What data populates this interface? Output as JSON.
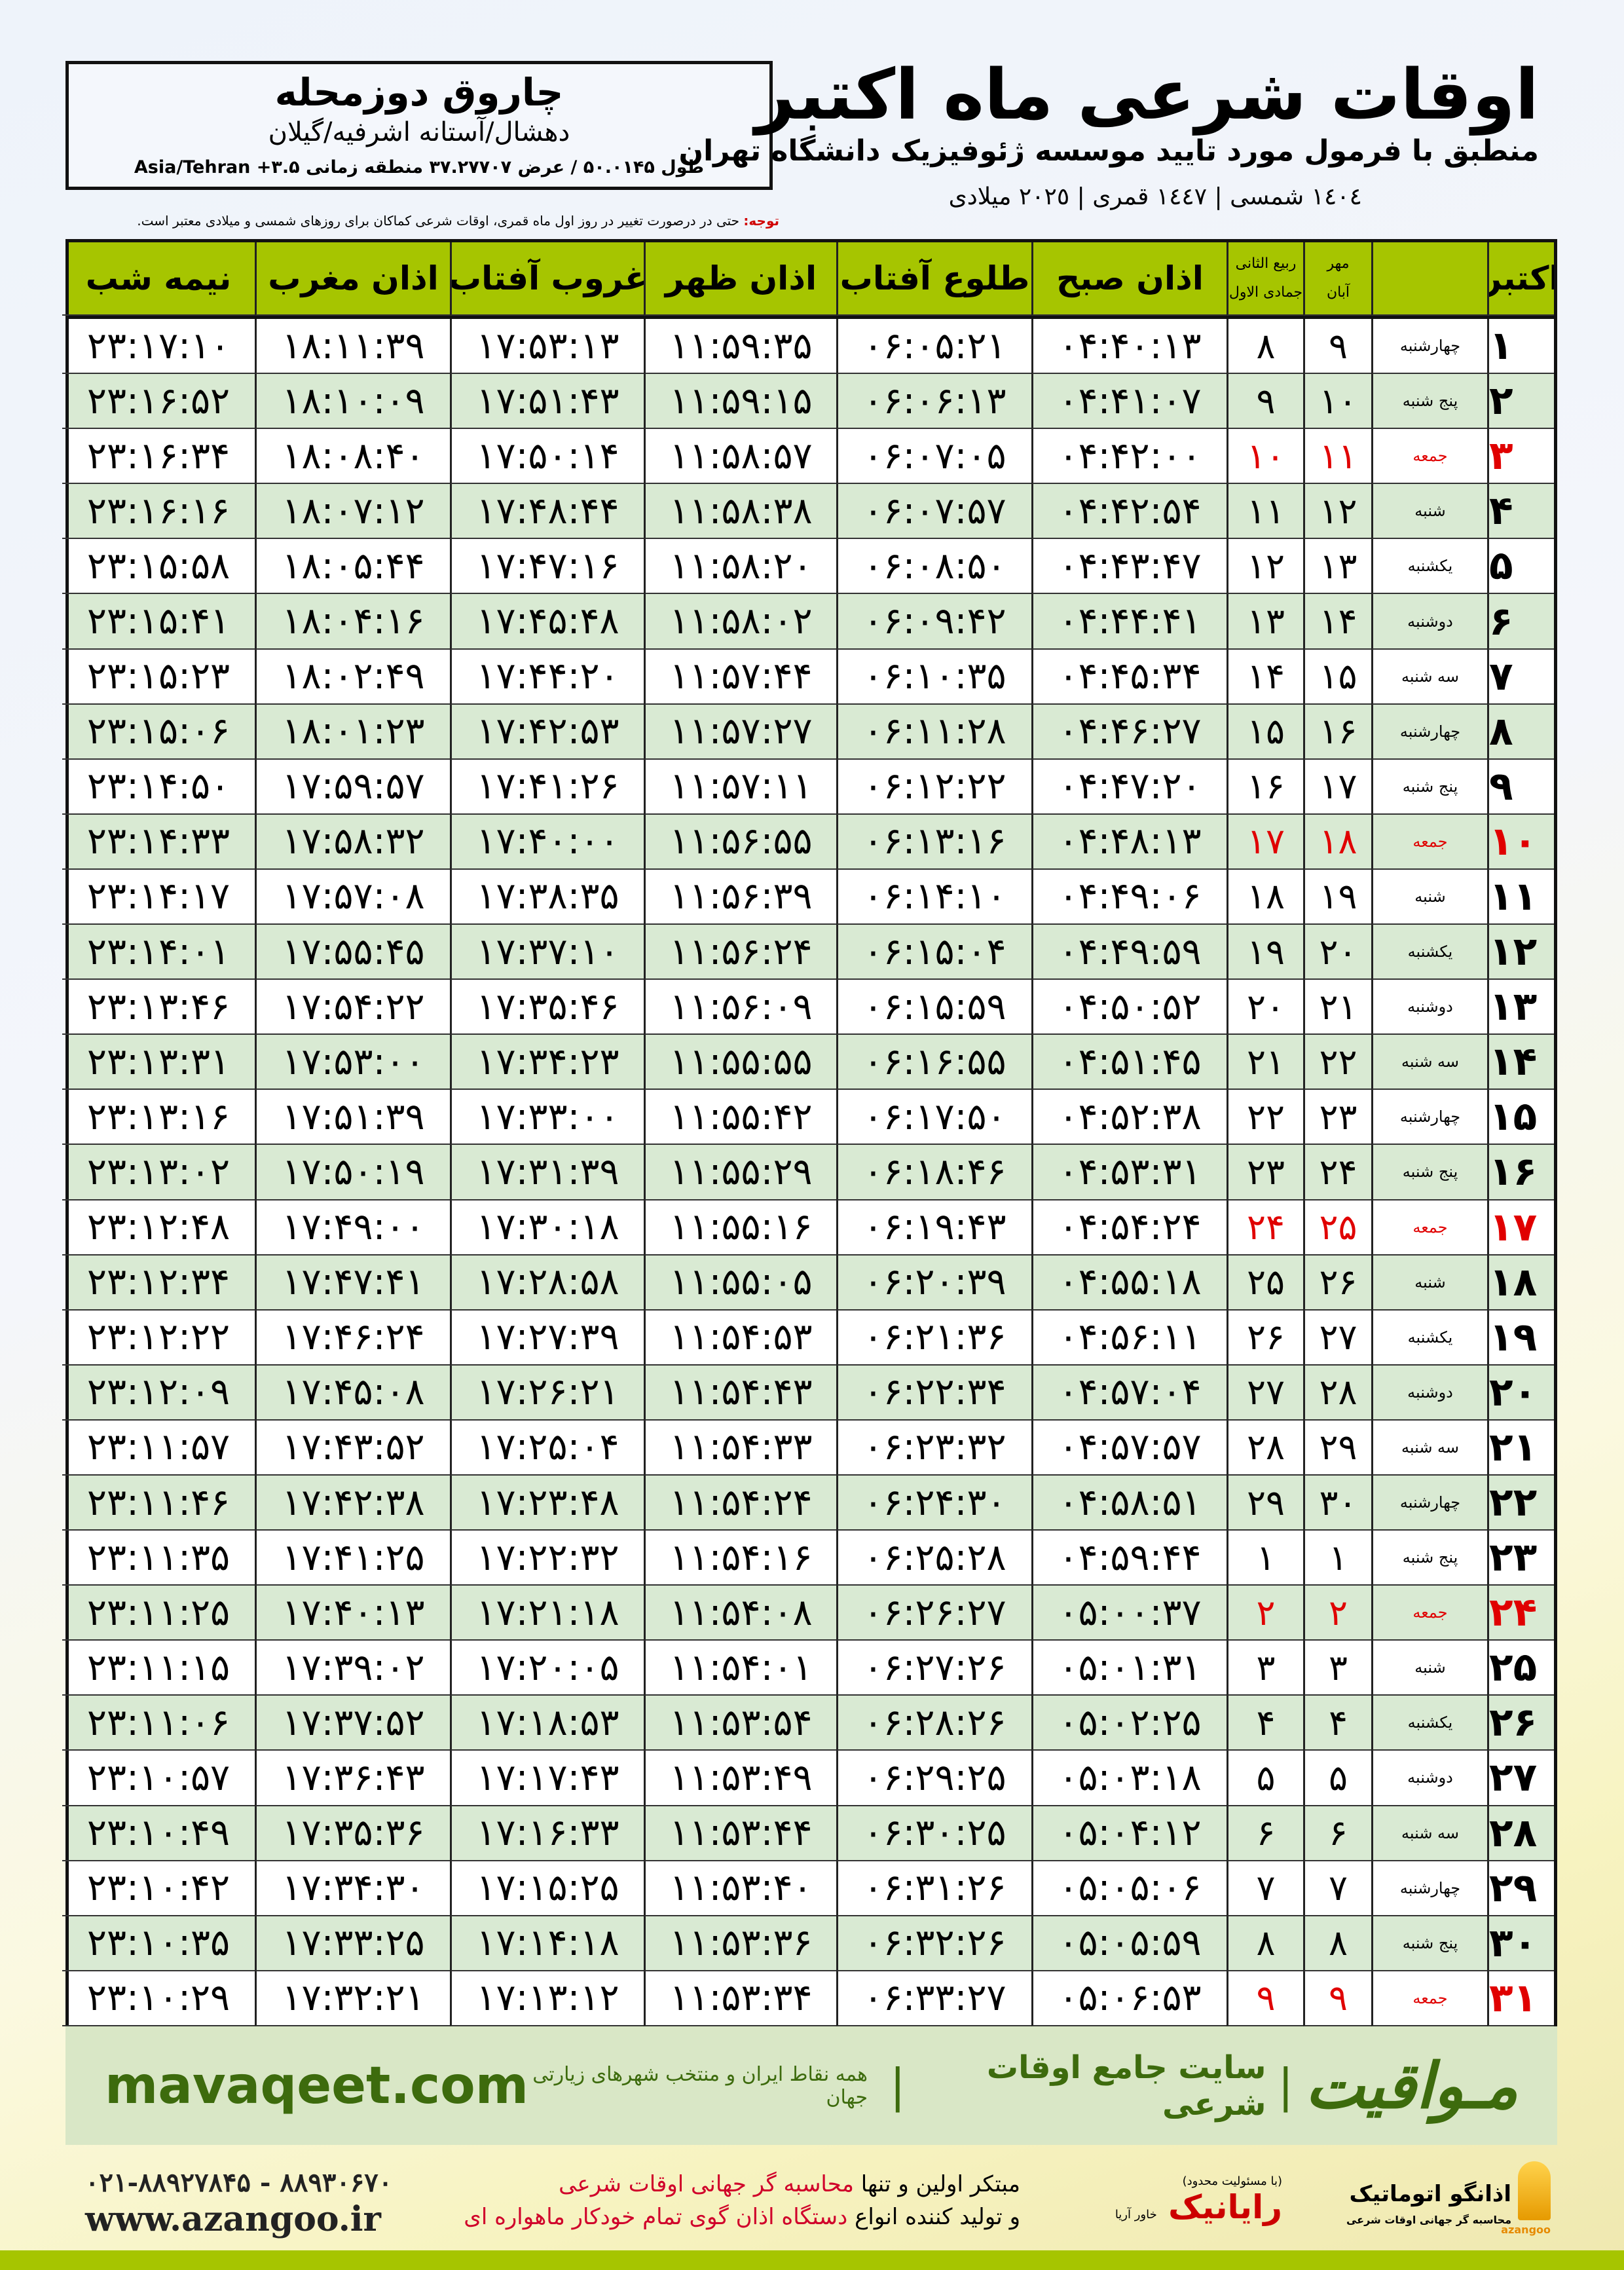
{
  "header": {
    "title": "اوقات شرعی ماه اکتبر",
    "subtitle": "منطبق با فرمول مورد تایید موسسه ژئوفیزیک دانشگاه تهران",
    "dates": "١٤٠٤ شمسی | ١٤٤٧ قمری | ٢٠٢٥ میلادی"
  },
  "location": {
    "city": "چاروق دوزمحله",
    "region": "دهشال/آستانه اشرفیه/گیلان",
    "coords": "طول ۵۰.۰۱۴۵ / عرض ۳۷.۲۷۷۰۷ منطقه زمانی ۳.۵+ Asia/Tehran"
  },
  "note": {
    "label": "توجه:",
    "text": "حتی در درصورت تغییر در روز اول ماه قمری، اوقات شرعی کماکان برای روزهای شمسی و میلادی معتبر است."
  },
  "colors": {
    "header_bg": "#a6c500",
    "alt_row": "#d9ead3",
    "holiday": "#e00000",
    "brand": "#3d6b0d"
  },
  "columns": {
    "month": "اکتبر",
    "shamsi_top": "مهر",
    "shamsi_bottom": "آبان",
    "qamari_top": "ربیع الثانی",
    "qamari_bottom": "جمادی الاول",
    "fajr": "اذان صبح",
    "sunrise": "طلوع آفتاب",
    "dhuhr": "اذان ظهر",
    "sunset": "غروب آفتاب",
    "maghrib": "اذان مغرب",
    "midnight": "نیمه شب"
  },
  "holiday_weekday": "جمعه",
  "rows": [
    [
      "۱",
      "چهارشنبه",
      "۹",
      "۸",
      "۰۴:۴۰:۱۳",
      "۰۶:۰۵:۲۱",
      "۱۱:۵۹:۳۵",
      "۱۷:۵۳:۱۳",
      "۱۸:۱۱:۳۹",
      "۲۳:۱۷:۱۰"
    ],
    [
      "۲",
      "پنج شنبه",
      "۱۰",
      "۹",
      "۰۴:۴۱:۰۷",
      "۰۶:۰۶:۱۳",
      "۱۱:۵۹:۱۵",
      "۱۷:۵۱:۴۳",
      "۱۸:۱۰:۰۹",
      "۲۳:۱۶:۵۲"
    ],
    [
      "۳",
      "جمعه",
      "۱۱",
      "۱۰",
      "۰۴:۴۲:۰۰",
      "۰۶:۰۷:۰۵",
      "۱۱:۵۸:۵۷",
      "۱۷:۵۰:۱۴",
      "۱۸:۰۸:۴۰",
      "۲۳:۱۶:۳۴"
    ],
    [
      "۴",
      "شنبه",
      "۱۲",
      "۱۱",
      "۰۴:۴۲:۵۴",
      "۰۶:۰۷:۵۷",
      "۱۱:۵۸:۳۸",
      "۱۷:۴۸:۴۴",
      "۱۸:۰۷:۱۲",
      "۲۳:۱۶:۱۶"
    ],
    [
      "۵",
      "یکشنبه",
      "۱۳",
      "۱۲",
      "۰۴:۴۳:۴۷",
      "۰۶:۰۸:۵۰",
      "۱۱:۵۸:۲۰",
      "۱۷:۴۷:۱۶",
      "۱۸:۰۵:۴۴",
      "۲۳:۱۵:۵۸"
    ],
    [
      "۶",
      "دوشنبه",
      "۱۴",
      "۱۳",
      "۰۴:۴۴:۴۱",
      "۰۶:۰۹:۴۲",
      "۱۱:۵۸:۰۲",
      "۱۷:۴۵:۴۸",
      "۱۸:۰۴:۱۶",
      "۲۳:۱۵:۴۱"
    ],
    [
      "۷",
      "سه شنبه",
      "۱۵",
      "۱۴",
      "۰۴:۴۵:۳۴",
      "۰۶:۱۰:۳۵",
      "۱۱:۵۷:۴۴",
      "۱۷:۴۴:۲۰",
      "۱۸:۰۲:۴۹",
      "۲۳:۱۵:۲۳"
    ],
    [
      "۸",
      "چهارشنبه",
      "۱۶",
      "۱۵",
      "۰۴:۴۶:۲۷",
      "۰۶:۱۱:۲۸",
      "۱۱:۵۷:۲۷",
      "۱۷:۴۲:۵۳",
      "۱۸:۰۱:۲۳",
      "۲۳:۱۵:۰۶"
    ],
    [
      "۹",
      "پنج شنبه",
      "۱۷",
      "۱۶",
      "۰۴:۴۷:۲۰",
      "۰۶:۱۲:۲۲",
      "۱۱:۵۷:۱۱",
      "۱۷:۴۱:۲۶",
      "۱۷:۵۹:۵۷",
      "۲۳:۱۴:۵۰"
    ],
    [
      "۱۰",
      "جمعه",
      "۱۸",
      "۱۷",
      "۰۴:۴۸:۱۳",
      "۰۶:۱۳:۱۶",
      "۱۱:۵۶:۵۵",
      "۱۷:۴۰:۰۰",
      "۱۷:۵۸:۳۲",
      "۲۳:۱۴:۳۳"
    ],
    [
      "۱۱",
      "شنبه",
      "۱۹",
      "۱۸",
      "۰۴:۴۹:۰۶",
      "۰۶:۱۴:۱۰",
      "۱۱:۵۶:۳۹",
      "۱۷:۳۸:۳۵",
      "۱۷:۵۷:۰۸",
      "۲۳:۱۴:۱۷"
    ],
    [
      "۱۲",
      "یکشنبه",
      "۲۰",
      "۱۹",
      "۰۴:۴۹:۵۹",
      "۰۶:۱۵:۰۴",
      "۱۱:۵۶:۲۴",
      "۱۷:۳۷:۱۰",
      "۱۷:۵۵:۴۵",
      "۲۳:۱۴:۰۱"
    ],
    [
      "۱۳",
      "دوشنبه",
      "۲۱",
      "۲۰",
      "۰۴:۵۰:۵۲",
      "۰۶:۱۵:۵۹",
      "۱۱:۵۶:۰۹",
      "۱۷:۳۵:۴۶",
      "۱۷:۵۴:۲۲",
      "۲۳:۱۳:۴۶"
    ],
    [
      "۱۴",
      "سه شنبه",
      "۲۲",
      "۲۱",
      "۰۴:۵۱:۴۵",
      "۰۶:۱۶:۵۵",
      "۱۱:۵۵:۵۵",
      "۱۷:۳۴:۲۳",
      "۱۷:۵۳:۰۰",
      "۲۳:۱۳:۳۱"
    ],
    [
      "۱۵",
      "چهارشنبه",
      "۲۳",
      "۲۲",
      "۰۴:۵۲:۳۸",
      "۰۶:۱۷:۵۰",
      "۱۱:۵۵:۴۲",
      "۱۷:۳۳:۰۰",
      "۱۷:۵۱:۳۹",
      "۲۳:۱۳:۱۶"
    ],
    [
      "۱۶",
      "پنج شنبه",
      "۲۴",
      "۲۳",
      "۰۴:۵۳:۳۱",
      "۰۶:۱۸:۴۶",
      "۱۱:۵۵:۲۹",
      "۱۷:۳۱:۳۹",
      "۱۷:۵۰:۱۹",
      "۲۳:۱۳:۰۲"
    ],
    [
      "۱۷",
      "جمعه",
      "۲۵",
      "۲۴",
      "۰۴:۵۴:۲۴",
      "۰۶:۱۹:۴۳",
      "۱۱:۵۵:۱۶",
      "۱۷:۳۰:۱۸",
      "۱۷:۴۹:۰۰",
      "۲۳:۱۲:۴۸"
    ],
    [
      "۱۸",
      "شنبه",
      "۲۶",
      "۲۵",
      "۰۴:۵۵:۱۸",
      "۰۶:۲۰:۳۹",
      "۱۱:۵۵:۰۵",
      "۱۷:۲۸:۵۸",
      "۱۷:۴۷:۴۱",
      "۲۳:۱۲:۳۴"
    ],
    [
      "۱۹",
      "یکشنبه",
      "۲۷",
      "۲۶",
      "۰۴:۵۶:۱۱",
      "۰۶:۲۱:۳۶",
      "۱۱:۵۴:۵۳",
      "۱۷:۲۷:۳۹",
      "۱۷:۴۶:۲۴",
      "۲۳:۱۲:۲۲"
    ],
    [
      "۲۰",
      "دوشنبه",
      "۲۸",
      "۲۷",
      "۰۴:۵۷:۰۴",
      "۰۶:۲۲:۳۴",
      "۱۱:۵۴:۴۳",
      "۱۷:۲۶:۲۱",
      "۱۷:۴۵:۰۸",
      "۲۳:۱۲:۰۹"
    ],
    [
      "۲۱",
      "سه شنبه",
      "۲۹",
      "۲۸",
      "۰۴:۵۷:۵۷",
      "۰۶:۲۳:۳۲",
      "۱۱:۵۴:۳۳",
      "۱۷:۲۵:۰۴",
      "۱۷:۴۳:۵۲",
      "۲۳:۱۱:۵۷"
    ],
    [
      "۲۲",
      "چهارشنبه",
      "۳۰",
      "۲۹",
      "۰۴:۵۸:۵۱",
      "۰۶:۲۴:۳۰",
      "۱۱:۵۴:۲۴",
      "۱۷:۲۳:۴۸",
      "۱۷:۴۲:۳۸",
      "۲۳:۱۱:۴۶"
    ],
    [
      "۲۳",
      "پنج شنبه",
      "۱",
      "۱",
      "۰۴:۵۹:۴۴",
      "۰۶:۲۵:۲۸",
      "۱۱:۵۴:۱۶",
      "۱۷:۲۲:۳۲",
      "۱۷:۴۱:۲۵",
      "۲۳:۱۱:۳۵"
    ],
    [
      "۲۴",
      "جمعه",
      "۲",
      "۲",
      "۰۵:۰۰:۳۷",
      "۰۶:۲۶:۲۷",
      "۱۱:۵۴:۰۸",
      "۱۷:۲۱:۱۸",
      "۱۷:۴۰:۱۳",
      "۲۳:۱۱:۲۵"
    ],
    [
      "۲۵",
      "شنبه",
      "۳",
      "۳",
      "۰۵:۰۱:۳۱",
      "۰۶:۲۷:۲۶",
      "۱۱:۵۴:۰۱",
      "۱۷:۲۰:۰۵",
      "۱۷:۳۹:۰۲",
      "۲۳:۱۱:۱۵"
    ],
    [
      "۲۶",
      "یکشنبه",
      "۴",
      "۴",
      "۰۵:۰۲:۲۵",
      "۰۶:۲۸:۲۶",
      "۱۱:۵۳:۵۴",
      "۱۷:۱۸:۵۳",
      "۱۷:۳۷:۵۲",
      "۲۳:۱۱:۰۶"
    ],
    [
      "۲۷",
      "دوشنبه",
      "۵",
      "۵",
      "۰۵:۰۳:۱۸",
      "۰۶:۲۹:۲۵",
      "۱۱:۵۳:۴۹",
      "۱۷:۱۷:۴۳",
      "۱۷:۳۶:۴۳",
      "۲۳:۱۰:۵۷"
    ],
    [
      "۲۸",
      "سه شنبه",
      "۶",
      "۶",
      "۰۵:۰۴:۱۲",
      "۰۶:۳۰:۲۵",
      "۱۱:۵۳:۴۴",
      "۱۷:۱۶:۳۳",
      "۱۷:۳۵:۳۶",
      "۲۳:۱۰:۴۹"
    ],
    [
      "۲۹",
      "چهارشنبه",
      "۷",
      "۷",
      "۰۵:۰۵:۰۶",
      "۰۶:۳۱:۲۶",
      "۱۱:۵۳:۴۰",
      "۱۷:۱۵:۲۵",
      "۱۷:۳۴:۳۰",
      "۲۳:۱۰:۴۲"
    ],
    [
      "۳۰",
      "پنج شنبه",
      "۸",
      "۸",
      "۰۵:۰۵:۵۹",
      "۰۶:۳۲:۲۶",
      "۱۱:۵۳:۳۶",
      "۱۷:۱۴:۱۸",
      "۱۷:۳۳:۲۵",
      "۲۳:۱۰:۳۵"
    ],
    [
      "۳۱",
      "جمعه",
      "۹",
      "۹",
      "۰۵:۰۶:۵۳",
      "۰۶:۳۳:۲۷",
      "۱۱:۵۳:۳۴",
      "۱۷:۱۳:۱۲",
      "۱۷:۳۲:۲۱",
      "۲۳:۱۰:۲۹"
    ]
  ],
  "footer": {
    "brand": "مـواقیت",
    "slogan": "سایت جامع اوقات شرعی",
    "sub": "همه نقاط ایران و منتخب شهرهای زیارتی جهان",
    "domain": "mavaqeet.com"
  },
  "bottom": {
    "logo1_name": "اذانگو اتوماتیک",
    "logo1_sub": "محاسبه گر جهانی اوقات شرعی",
    "logo1_latin": "azangoo",
    "logo2_name": "رایانیک",
    "logo2_sub": "خاور آریا",
    "logo2_note": "(با مسئولیت محدود)",
    "promo1_a": "مبتکر اولین و تنها ",
    "promo1_b": "محاسبه گر جهانی اوقات شرعی",
    "promo2_a": "و تولید کننده انواع ",
    "promo2_b": "دستگاه اذان گوی تمام خودکار ماهواره ای",
    "phone": "۰۲۱-۸۸۹۲۷۸۴۵ - ۸۸۹۳۰۶۷۰",
    "website": "www.azangoo.ir"
  }
}
